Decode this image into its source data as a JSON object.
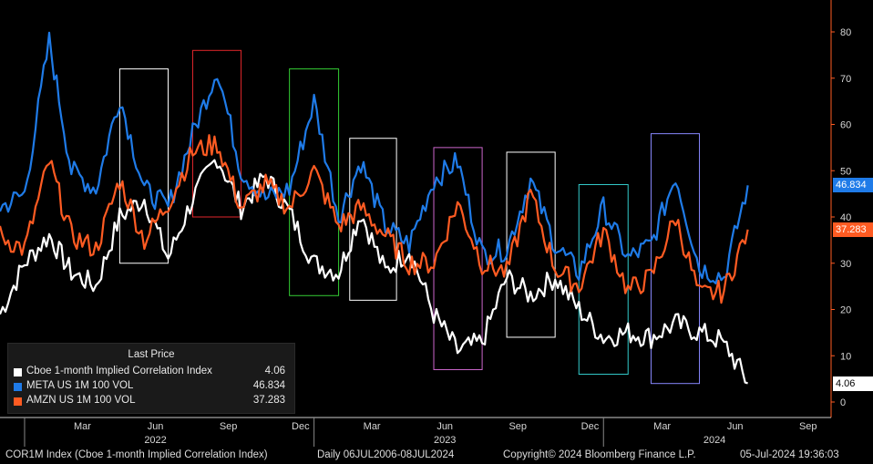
{
  "chart_data": {
    "type": "line",
    "title": "",
    "ylim": [
      -3,
      83
    ],
    "y_ticks": [
      0,
      10,
      20,
      30,
      40,
      50,
      60,
      70,
      80
    ],
    "x_ticks": [
      "Mar",
      "Jun",
      "Sep",
      "Dec",
      "Mar",
      "Jun",
      "Sep",
      "Dec",
      "Mar",
      "Jun",
      "Sep"
    ],
    "year_labels": [
      "2022",
      "2023",
      "2024"
    ],
    "grid": false,
    "legend_position": "bottom-left",
    "colors": {
      "corr": "#ffffff",
      "meta": "#1f7be8",
      "amzn": "#ff5b22"
    },
    "series": [
      {
        "name": "Cboe 1-month Implied Correlation Index",
        "color": "#ffffff",
        "x": [
          "2021-12",
          "2022-01",
          "2022-02",
          "2022-03",
          "2022-04",
          "2022-05",
          "2022-06",
          "2022-07",
          "2022-08",
          "2022-09",
          "2022-10",
          "2022-11",
          "2022-12",
          "2023-01",
          "2023-02",
          "2023-03",
          "2023-04",
          "2023-05",
          "2023-06",
          "2023-07",
          "2023-08",
          "2023-09",
          "2023-10",
          "2023-11",
          "2023-12",
          "2024-01",
          "2024-02",
          "2024-03",
          "2024-04",
          "2024-05",
          "2024-06",
          "2024-07"
        ],
        "values": [
          19,
          30,
          36,
          28,
          25,
          40,
          44,
          31,
          44,
          53,
          42,
          49,
          41,
          30,
          28,
          41,
          28,
          33,
          19,
          11,
          13,
          27,
          23,
          27,
          20,
          14,
          15,
          14,
          17,
          15,
          13,
          4.06
        ]
      },
      {
        "name": "META US 1M 100 VOL",
        "color": "#1f7be8",
        "x": [
          "2021-12",
          "2022-01",
          "2022-02",
          "2022-03",
          "2022-04",
          "2022-05",
          "2022-06",
          "2022-07",
          "2022-08",
          "2022-09",
          "2022-10",
          "2022-11",
          "2022-12",
          "2023-01",
          "2023-02",
          "2023-03",
          "2023-04",
          "2023-05",
          "2023-06",
          "2023-07",
          "2023-08",
          "2023-09",
          "2023-10",
          "2023-11",
          "2023-12",
          "2024-01",
          "2024-02",
          "2024-03",
          "2024-04",
          "2024-05",
          "2024-06",
          "2024-07"
        ],
        "values": [
          42,
          45,
          78,
          50,
          46,
          66,
          46,
          42,
          58,
          72,
          50,
          44,
          46,
          65,
          40,
          52,
          38,
          34,
          48,
          52,
          32,
          33,
          48,
          34,
          28,
          42,
          31,
          34,
          49,
          29,
          27,
          46.834
        ]
      },
      {
        "name": "AMZN US 1M 100 VOL",
        "color": "#ff5b22",
        "x": [
          "2021-12",
          "2022-01",
          "2022-02",
          "2022-03",
          "2022-04",
          "2022-05",
          "2022-06",
          "2022-07",
          "2022-08",
          "2022-09",
          "2022-10",
          "2022-11",
          "2022-12",
          "2023-01",
          "2023-02",
          "2023-03",
          "2023-04",
          "2023-05",
          "2023-06",
          "2023-07",
          "2023-08",
          "2023-09",
          "2023-10",
          "2023-11",
          "2023-12",
          "2024-01",
          "2024-02",
          "2024-03",
          "2024-04",
          "2024-05",
          "2024-06",
          "2024-07"
        ],
        "values": [
          36,
          33,
          52,
          36,
          33,
          48,
          35,
          43,
          54,
          56,
          42,
          47,
          42,
          50,
          38,
          42,
          36,
          30,
          30,
          43,
          30,
          28,
          45,
          29,
          25,
          37,
          24,
          27,
          40,
          23,
          24,
          37.283
        ]
      }
    ],
    "highlight_boxes": [
      {
        "color": "#ffffff",
        "x_from": "2022-05",
        "x_to": "2022-07",
        "y_from": 30,
        "y_to": 72
      },
      {
        "color": "#e0262b",
        "x_from": "2022-08",
        "x_to": "2022-10",
        "y_from": 40,
        "y_to": 76
      },
      {
        "color": "#33cc33",
        "x_from": "2022-12",
        "x_to": "2023-02",
        "y_from": 23,
        "y_to": 72
      },
      {
        "color": "#ffffff",
        "x_from": "2023-02-15",
        "x_to": "2023-04-15",
        "y_from": 22,
        "y_to": 57
      },
      {
        "color": "#cc66cc",
        "x_from": "2023-06",
        "x_to": "2023-08",
        "y_from": 7,
        "y_to": 55
      },
      {
        "color": "#ffffff",
        "x_from": "2023-09",
        "x_to": "2023-11",
        "y_from": 14,
        "y_to": 54
      },
      {
        "color": "#33cccc",
        "x_from": "2023-12",
        "x_to": "2024-02",
        "y_from": 6,
        "y_to": 47
      },
      {
        "color": "#8888ff",
        "x_from": "2024-03",
        "x_to": "2024-05",
        "y_from": 4,
        "y_to": 58
      }
    ]
  },
  "legend": {
    "header": "Last Price",
    "items": [
      {
        "name": "Cboe 1-month Implied Correlation Index",
        "value": "4.06",
        "color": "#ffffff"
      },
      {
        "name": "META US 1M 100 VOL",
        "value": "46.834",
        "color": "#1f7be8"
      },
      {
        "name": "AMZN US 1M 100 VOL",
        "value": "37.283",
        "color": "#ff5b22"
      }
    ]
  },
  "badges": {
    "meta": "46.834",
    "amzn": "37.283",
    "corr": "4.06"
  },
  "footer": {
    "ticker": "COR1M Index (Cboe 1-month Implied Correlation Index)",
    "range": "Daily 06JUL2006-08JUL2024",
    "copyright": "Copyright© 2024 Bloomberg Finance L.P.",
    "timestamp": "05-Jul-2024 19:36:03"
  }
}
